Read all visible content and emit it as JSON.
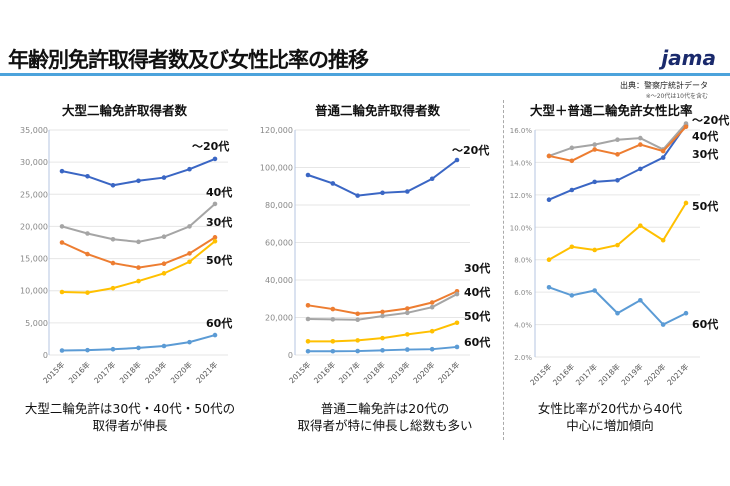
{
  "header": {
    "title": "年齢別免許取得者数及び女性比率の推移",
    "logo": "jama",
    "source": "出典：警察庁統計データ",
    "note": "※～20代は10代を含む"
  },
  "captions": [
    "大型二輪免許は30代・40代・50代の",
    "取得者が伸長",
    "普通二輪免許は20代の",
    "取得者が特に伸長し総数も多い",
    "女性比率が20代から40代",
    "中心に増加傾向"
  ],
  "colors": {
    "~20": "#3a66c4",
    "30": "#ed7d31",
    "40": "#a5a5a5",
    "50": "#ffc000",
    "60": "#5b9bd5"
  },
  "chart_data": [
    {
      "type": "line",
      "title": "大型二輪免許取得者数",
      "categories": [
        "2015年",
        "2016年",
        "2017年",
        "2018年",
        "2019年",
        "2020年",
        "2021年"
      ],
      "ylim": [
        0,
        35000
      ],
      "yticks": [
        "0",
        "5,000",
        "10,000",
        "15,000",
        "20,000",
        "25,000",
        "30,000",
        "35,000"
      ],
      "grid": true,
      "series": [
        {
          "name": "～20代",
          "key": "~20",
          "values": [
            28600,
            27800,
            26400,
            27100,
            27600,
            28900,
            30500
          ]
        },
        {
          "name": "40代",
          "key": "40",
          "values": [
            20000,
            18900,
            18000,
            17600,
            18400,
            20000,
            23500
          ]
        },
        {
          "name": "30代",
          "key": "30",
          "values": [
            17500,
            15700,
            14300,
            13600,
            14200,
            15800,
            18300
          ]
        },
        {
          "name": "50代",
          "key": "50",
          "values": [
            9800,
            9700,
            10400,
            11500,
            12700,
            14500,
            17700
          ]
        },
        {
          "name": "60代",
          "key": "60",
          "values": [
            700,
            750,
            900,
            1100,
            1400,
            2000,
            3100
          ]
        }
      ]
    },
    {
      "type": "line",
      "title": "普通二輪免許取得者数",
      "categories": [
        "2015年",
        "2016年",
        "2017年",
        "2018年",
        "2019年",
        "2020年",
        "2021年"
      ],
      "ylim": [
        0,
        120000
      ],
      "yticks": [
        "0",
        "20,000",
        "40,000",
        "60,000",
        "80,000",
        "100,000",
        "120,000"
      ],
      "grid": true,
      "series": [
        {
          "name": "～20代",
          "key": "~20",
          "values": [
            96000,
            91500,
            85000,
            86500,
            87200,
            94000,
            104000
          ]
        },
        {
          "name": "30代",
          "key": "30",
          "values": [
            26500,
            24500,
            22000,
            23000,
            24800,
            28000,
            34000
          ]
        },
        {
          "name": "40代",
          "key": "40",
          "values": [
            19200,
            19000,
            18800,
            20800,
            22500,
            25500,
            32500
          ]
        },
        {
          "name": "50代",
          "key": "50",
          "values": [
            7300,
            7300,
            7800,
            9000,
            11000,
            12700,
            17200
          ]
        },
        {
          "name": "60代",
          "key": "60",
          "values": [
            2000,
            2000,
            2100,
            2500,
            2900,
            3100,
            4300
          ]
        }
      ]
    },
    {
      "type": "line",
      "title": "大型＋普通二輪免許女性比率",
      "categories": [
        "2015年",
        "2016年",
        "2017年",
        "2018年",
        "2019年",
        "2020年",
        "2021年"
      ],
      "ylim": [
        2,
        16
      ],
      "yticks": [
        "2.0%",
        "4.0%",
        "6.0%",
        "8.0%",
        "10.0%",
        "12.0%",
        "14.0%",
        "16.0%"
      ],
      "grid": true,
      "series": [
        {
          "name": "～20代",
          "key": "~20",
          "values": [
            11.7,
            12.3,
            12.8,
            12.9,
            13.6,
            14.3,
            16.3
          ]
        },
        {
          "name": "40代",
          "key": "40",
          "values": [
            14.4,
            14.9,
            15.1,
            15.4,
            15.5,
            14.8,
            16.4
          ]
        },
        {
          "name": "30代",
          "key": "30",
          "values": [
            14.4,
            14.1,
            14.8,
            14.5,
            15.1,
            14.7,
            16.2
          ]
        },
        {
          "name": "50代",
          "key": "50",
          "values": [
            8.0,
            8.8,
            8.6,
            8.9,
            10.1,
            9.2,
            11.5
          ]
        },
        {
          "name": "60代",
          "key": "60",
          "values": [
            6.3,
            5.8,
            6.1,
            4.7,
            5.5,
            4.0,
            4.7
          ]
        }
      ]
    }
  ]
}
